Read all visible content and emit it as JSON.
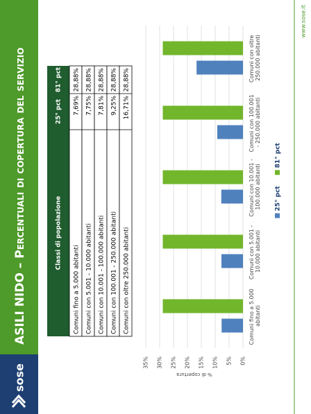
{
  "header": {
    "logo": "sose",
    "title": "ASILI NIDO – Percentuali di copertura del servizio"
  },
  "footer": {
    "url": "www.sose.it"
  },
  "table": {
    "columns": [
      "Classi di popolazione",
      "25° pct",
      "81° pct"
    ],
    "rows": [
      [
        "Comuni fino a 5.000 abitanti",
        "7,69%",
        "28,88%"
      ],
      [
        "Comuni con 5.001 - 10.000 abitanti",
        "7,75%",
        "28,88%"
      ],
      [
        "Comuni con 10.001 - 100.000 abitanti",
        "7,81%",
        "28,88%"
      ],
      [
        "Comuni con 100.001 - 250.000 abitanti",
        "9,25%",
        "28,88%"
      ],
      [
        "Comuni con oltre 250.000 abitanti",
        "16,71%",
        "28,88%"
      ]
    ]
  },
  "chart_data": {
    "type": "bar",
    "y_label": "% di copertura",
    "categories": [
      "Comuni fino a 5.000 abitanti",
      "Comuni con 5.001 - 10.000 abitanti",
      "Comuni con 10.001 - 100.000 abitanti",
      "Comuni con 100.001 - 250.000 abitanti",
      "Comuni con oltre 250.000 abitanti"
    ],
    "series": [
      {
        "name": "25° pct",
        "color": "#4f81bd",
        "values": [
          7.69,
          7.75,
          7.81,
          9.25,
          16.71
        ]
      },
      {
        "name": "81° pct",
        "color": "#72b62c",
        "values": [
          28.88,
          28.88,
          28.88,
          28.88,
          28.88
        ]
      }
    ],
    "ylim": [
      0,
      35
    ],
    "yticks": [
      {
        "value": 0,
        "label": "0%"
      },
      {
        "value": 5,
        "label": "5%"
      },
      {
        "value": 10,
        "label": "10%"
      },
      {
        "value": 15,
        "label": "15%"
      },
      {
        "value": 20,
        "label": "20%"
      },
      {
        "value": 25,
        "label": "25%"
      },
      {
        "value": 30,
        "label": "30%"
      },
      {
        "value": 35,
        "label": "35%"
      }
    ],
    "grid": true,
    "legend": "bottom"
  }
}
